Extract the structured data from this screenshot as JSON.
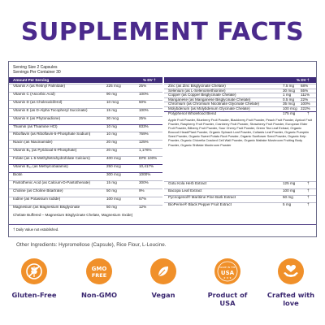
{
  "title": "SUPPLEMENT FACTS",
  "serving": {
    "size": "Serving Size 2 Capsules",
    "per_container": "Servings Per Container 30"
  },
  "header": {
    "amount_per_serving": "Amount Per Serving",
    "dv": "% DV †"
  },
  "left_rows": [
    {
      "name": "Vitamin A (as Retinyl Palmitate)",
      "amount": "225 mcg",
      "dv": "25%"
    },
    {
      "name": "Vitamin C (Ascorbic Acid)",
      "amount": "90 mg",
      "dv": "100%"
    },
    {
      "name": "Vitamin D (as Cholecalciferol)",
      "amount": "10 mcg",
      "dv": "50%"
    },
    {
      "name": "Vitamin E (as D-Alpha Tocopheryl Succinate)",
      "amount": "15 mg",
      "dv": "100%"
    },
    {
      "name": "Vitamin K (as Phytonadione)",
      "amount": "30 mcg",
      "dv": "25%"
    },
    {
      "name": "Thiamin (as Thiamine HCl)",
      "amount": "10 mg",
      "dv": "833%"
    },
    {
      "name": "Riboflavin (as Riboflavin-5-Phosphate Sodium)",
      "amount": "10 mg",
      "dv": "769%"
    },
    {
      "name": "Niacin (as Niacinamide)",
      "amount": "20 mg",
      "dv": "125%"
    },
    {
      "name": "Vitamin B₆ (as Pyridoxal-5-Phosphate)",
      "amount": "20 mg",
      "dv": "1,176%"
    },
    {
      "name": "Folate (as L-5-Methyltetrahydrofolate Calcium)",
      "amount": "400 mcg",
      "dv": "DFE 100%"
    },
    {
      "name": "Vitamin B₁₂ (as Methylcobalamin)",
      "amount": "250 mcg",
      "dv": "10,417%"
    },
    {
      "name": "Biotin",
      "amount": "300 mcg",
      "dv": "1000%"
    },
    {
      "name": "Pantothenic Acid (as Calcium-D-Pantothenate)",
      "amount": "15 mg",
      "dv": "300%"
    },
    {
      "name": "Choline (as Choline Bitartrate)",
      "amount": "50 mg",
      "dv": "9%"
    },
    {
      "name": "Iodine (as Potassium Iodide)",
      "amount": "100 mcg",
      "dv": "67%"
    },
    {
      "name": "Magnesium (as Magnesium Bisglycinate",
      "amount": "50 mg",
      "dv": "12%"
    }
  ],
  "chelate_note": "Chelate Buffered – Magnesium Bisglycinate Chelate, Magnesium Oxide)",
  "right_rows": [
    {
      "name": "Zinc (as Zinc Bisglycinate Chelate)",
      "amount": "7.5 mg",
      "dv": "68%"
    },
    {
      "name": "Selenium (as L-Selenomethionine)",
      "amount": "30 mcg",
      "dv": "55%"
    },
    {
      "name": "Copper (as Copper Bisglycinate Chelate)",
      "amount": "1 mg",
      "dv": "111%"
    },
    {
      "name": "Manganese (as Manganese Bisglycinate Chelate)",
      "amount": "0.5 mg",
      "dv": "22%"
    },
    {
      "name": "Chromium (as Chromium Nicotinate Glycinate Chelate)",
      "amount": "35 mcg",
      "dv": "100%"
    },
    {
      "name": "Molybdenum (as Molybdenum Glycinate Chelate)",
      "amount": "100 mcg",
      "dv": "222%"
    }
  ],
  "blend": {
    "name": "Polyphenol Wholefood Blend",
    "amount": "175 mg",
    "dv": "†",
    "ingredients": "Apple Fruit Powder, Blueberry Fruit Powder, Blackberry Fruit Powder, Peach Fruit Powder, Apricot Fruit Powder, Raspberry Fruit Powder, Cranberry Fruit Powder, Strawberry Fruit Powder, European Elder Fruit Powder, Bilberry Fruit Powder, Sour Cherry Fruit Powder, Green Tea Leaf Extract, Organic Broccoli Head/Plant Powder, Organic Spinach Leaf Powder, Collards Leaf Powder, Organic Pumpkin Seed Powder, Organic Sweet Potato Root Powder, Organic Sunflower Seed Powder, Organic Kelp Powder, Organic Chlorella Cracked Cell Wall Powder, Organic Maitake Mushroom Fruiting Body Powder, Organic Shiitake Mushroom Powder"
  },
  "extract_rows": [
    {
      "name": "Gotu Kola Herb Extract",
      "amount": "125 mg",
      "dv": "†"
    },
    {
      "name": "Bacopa Leaf Extract",
      "amount": "100 mg",
      "dv": "†"
    },
    {
      "name": "Pycnogenol® Maritime Pine Bark Extract",
      "amount": "50 mg",
      "dv": "†"
    },
    {
      "name": "BioPerine® Black Pepper Fruit Extract",
      "amount": "5 mg",
      "dv": "†"
    }
  ],
  "footnote": "† Daily Value not established.",
  "other_ingredients": "Other Ingredients: Hypromellose (Capsule), Rice Flour, L-Leucine.",
  "badges": [
    {
      "label": "Gluten-Free",
      "icon": "wheat-crossed-icon"
    },
    {
      "label": "Non-GMO",
      "icon": "gmo-free-icon",
      "icon_text_1": "GMO",
      "icon_text_2": "FREE"
    },
    {
      "label": "Vegan",
      "icon": "leaf-icon"
    },
    {
      "label": "Product of USA",
      "icon": "made-in-usa-icon",
      "icon_text_1": "MADE IN THE",
      "icon_text_2": "USA"
    },
    {
      "label": "Crafted with love",
      "icon": "hands-heart-icon"
    }
  ],
  "colors": {
    "title": "#4b2a8c",
    "header_bar": "#3e2a78",
    "badge": "#f0902a",
    "badge_label": "#3a2770"
  }
}
